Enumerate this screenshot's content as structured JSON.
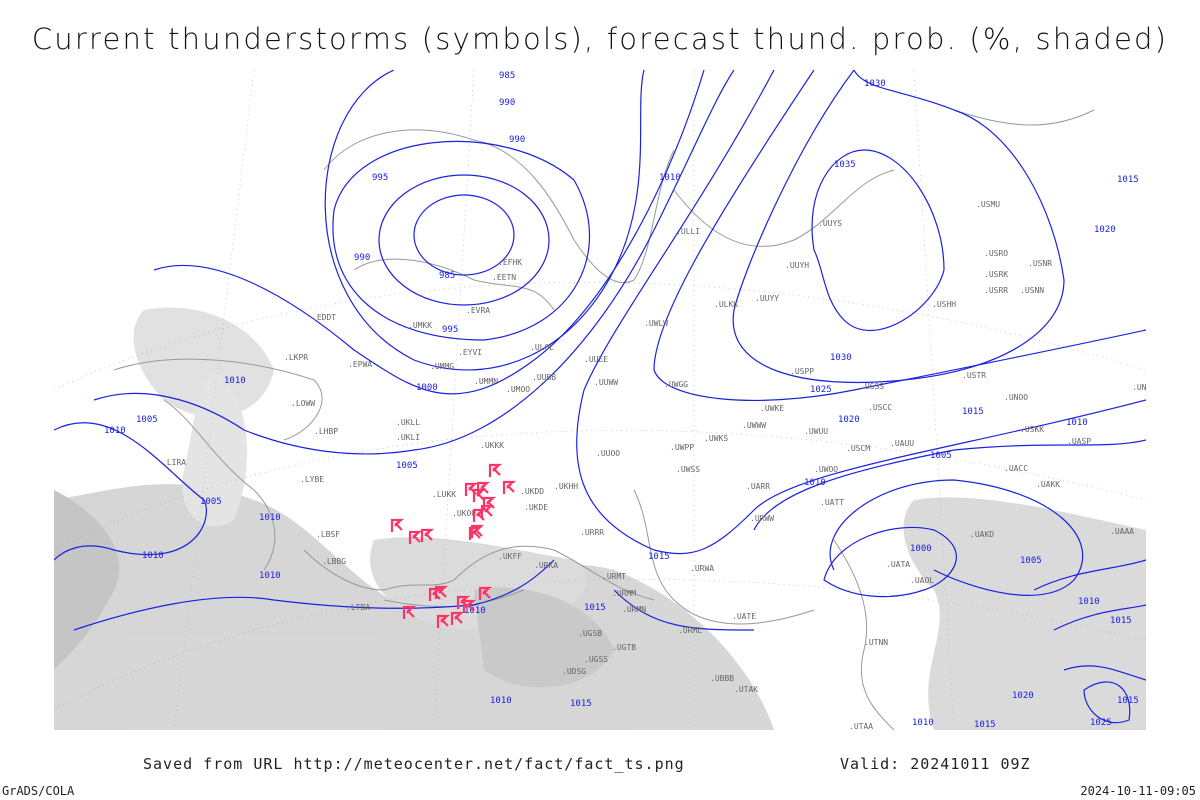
{
  "title": "Current thunderstorms (symbols), forecast thund. prob. (%, shaded)",
  "footer": {
    "saved": "Saved from URL http://meteocenter.net/fact/fact_ts.png",
    "valid": "Valid: 20241011 09Z",
    "software": "GrADS/COLA",
    "timestamp": "2024-10-11-09:05"
  },
  "colors": {
    "isobar": "#1a22e0",
    "storm_symbol": "#ff3366",
    "shading": "#c8c8c8",
    "coast": "#999999"
  },
  "isobar_labels": [
    "985",
    "990",
    "990",
    "995",
    "990",
    "985",
    "995",
    "1000",
    "1005",
    "1010",
    "1010",
    "1005",
    "1010",
    "1010",
    "1005",
    "1010",
    "1010",
    "1015",
    "1010",
    "1015",
    "1010",
    "1015",
    "1020",
    "1025",
    "1030",
    "1035",
    "1030",
    "1010",
    "1015",
    "1020",
    "1005",
    "1000",
    "1005",
    "1010",
    "1015",
    "1015",
    "1020",
    "1025",
    "1010",
    "1015",
    "1010",
    "1015"
  ],
  "stations": [
    "EDDT",
    "EPWA",
    "LKPR",
    "LOWW",
    "LHBP",
    "LIRA",
    "LYBE",
    "LBSF",
    "LBBG",
    "LTBA",
    "UMKK",
    "EVRA",
    "EYVI",
    "UMMG",
    "UMMN",
    "UMOO",
    "UKLL",
    "UKLI",
    "UKKK",
    "UKOO",
    "LUKK",
    "UKHH",
    "UKDD",
    "UKDE",
    "UKFF",
    "URKA",
    "URRR",
    "URMT",
    "URMM",
    "URMN",
    "UGSB",
    "UGSS",
    "UGTB",
    "UDSG",
    "UBBB",
    "UTAK",
    "URWA",
    "UATE",
    "URML",
    "UTAA",
    "UTNN",
    "UATA",
    "UAOL",
    "UAKD",
    "UACC",
    "UAKK",
    "UASP",
    "UAAA",
    "UATT",
    "URWW",
    "UUOO",
    "UUWW",
    "UUBB",
    "UUEE",
    "ULLI",
    "ULOL",
    "EFHK",
    "EETN",
    "UUYY",
    "UUYH",
    "UUYS",
    "ULKK",
    "USSS",
    "USCC",
    "USCM",
    "UWOO",
    "UWUU",
    "UWKE",
    "UWWW",
    "UWPP",
    "UWKS",
    "UWGG",
    "UWSS",
    "UARR",
    "UWLW",
    "USPP",
    "USHH",
    "USRR",
    "USRK",
    "USNN",
    "USNR",
    "USRO",
    "USMU",
    "UNBB",
    "USTR",
    "UNOO",
    "USKK",
    "UAUU"
  ]
}
